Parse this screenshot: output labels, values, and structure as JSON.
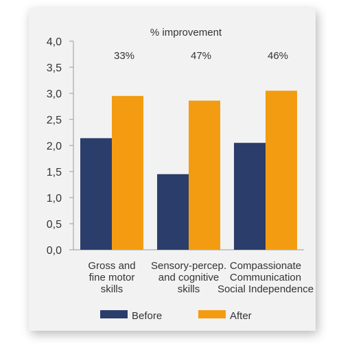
{
  "chart_data": {
    "type": "bar",
    "title": "% improvement",
    "categories": [
      [
        "Gross and",
        "fine motor",
        "skills"
      ],
      [
        "Sensory-percep.",
        "and cognitive",
        "skills"
      ],
      [
        "Compassionate",
        "Communication",
        "Social Independence"
      ]
    ],
    "series": [
      {
        "name": "Before",
        "color": "#2b3d6b",
        "values": [
          2.14,
          1.45,
          2.05
        ]
      },
      {
        "name": "After",
        "color": "#f39c12",
        "values": [
          2.95,
          2.86,
          3.05
        ]
      }
    ],
    "annotations": [
      "33%",
      "47%",
      "46%"
    ],
    "ylim": [
      0,
      4
    ],
    "yticks": [
      "0,0",
      "0,5",
      "1,0",
      "1,5",
      "2,0",
      "2,5",
      "3,0",
      "3,5",
      "4,0"
    ],
    "ytick_values": [
      0,
      0.5,
      1,
      1.5,
      2,
      2.5,
      3,
      3.5,
      4
    ],
    "grid": false,
    "legend": "bottom"
  }
}
